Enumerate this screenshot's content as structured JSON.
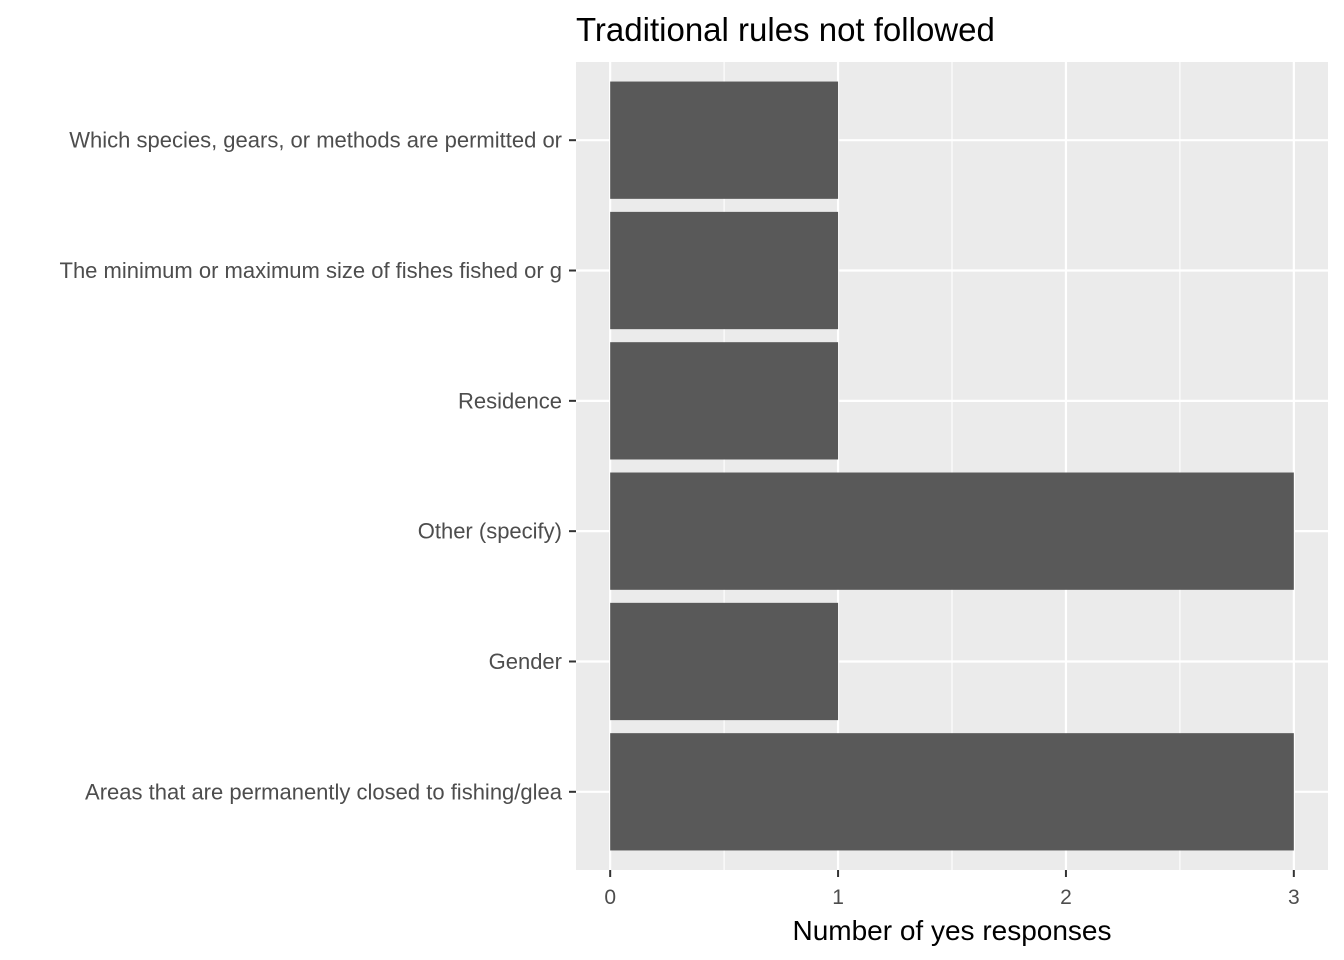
{
  "chart_data": {
    "type": "bar",
    "orientation": "horizontal",
    "title": "Traditional rules not followed",
    "xlabel": "Number of yes responses",
    "ylabel": "",
    "categories": [
      "Which species, gears, or methods are permitted or",
      "The minimum or maximum size of fishes fished or g",
      "Residence",
      "Other (specify)",
      "Gender",
      "Areas that are permanently closed to fishing/glea"
    ],
    "values": [
      1,
      1,
      1,
      3,
      1,
      3
    ],
    "xlim": [
      0,
      3
    ],
    "xticks": [
      0,
      1,
      2,
      3
    ],
    "grid": true,
    "legend": "none",
    "colors": {
      "bar": "#595959",
      "panel": "#ebebeb",
      "grid": "#ffffff"
    }
  }
}
